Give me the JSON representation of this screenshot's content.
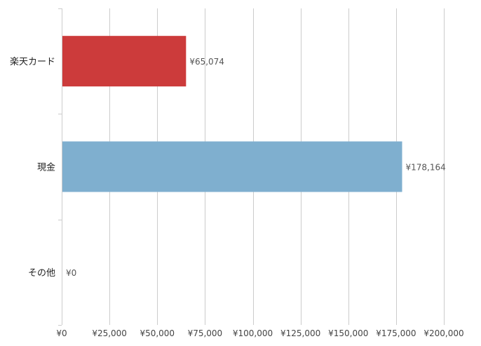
{
  "chart_data": {
    "type": "bar",
    "orientation": "horizontal",
    "categories": [
      "楽天カード",
      "現金",
      "その他"
    ],
    "values": [
      65074,
      178164,
      0
    ],
    "value_labels": [
      "¥65,074",
      "¥178,164",
      "¥0"
    ],
    "bar_colors": [
      "#cc3b3b",
      "#7fafcf",
      "#7fafcf"
    ],
    "xlim": [
      0,
      200000
    ],
    "x_ticks": [
      0,
      25000,
      50000,
      75000,
      100000,
      125000,
      150000,
      175000,
      200000
    ],
    "x_tick_labels": [
      "¥0",
      "¥25,000",
      "¥50,000",
      "¥75,000",
      "¥100,000",
      "¥125,000",
      "¥150,000",
      "¥175,000",
      "¥200,000"
    ],
    "title": "",
    "xlabel": "",
    "ylabel": "",
    "grid": true,
    "legend": "none"
  },
  "colors": {
    "grid": "#cccccc",
    "text": "#444444"
  }
}
